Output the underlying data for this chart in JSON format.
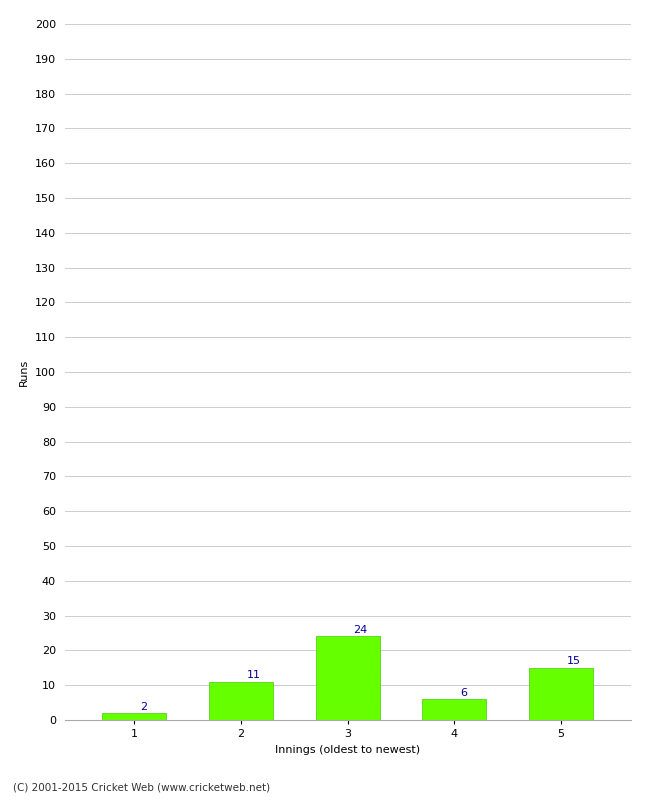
{
  "categories": [
    "1",
    "2",
    "3",
    "4",
    "5"
  ],
  "values": [
    2,
    11,
    24,
    6,
    15
  ],
  "bar_color": "#66ff00",
  "bar_edge_color": "#44cc00",
  "label_color": "#000099",
  "ylabel": "Runs",
  "xlabel": "Innings (oldest to newest)",
  "ylim": [
    0,
    200
  ],
  "yticks": [
    0,
    10,
    20,
    30,
    40,
    50,
    60,
    70,
    80,
    90,
    100,
    110,
    120,
    130,
    140,
    150,
    160,
    170,
    180,
    190,
    200
  ],
  "footnote": "(C) 2001-2015 Cricket Web (www.cricketweb.net)",
  "label_fontsize": 8,
  "axis_label_fontsize": 8,
  "tick_fontsize": 8,
  "footnote_fontsize": 7.5
}
